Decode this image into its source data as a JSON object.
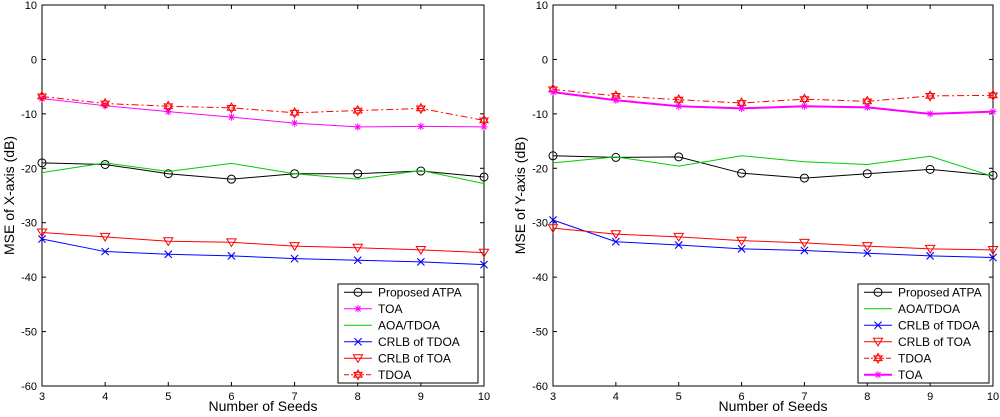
{
  "chart_data": [
    {
      "type": "line",
      "xlabel": "Number of Seeds",
      "ylabel": "MSE of X-axis (dB)",
      "x": [
        3,
        4,
        5,
        6,
        7,
        8,
        9,
        10
      ],
      "xlim": [
        3,
        10
      ],
      "ylim": [
        -60,
        10
      ],
      "xticks": [
        "3",
        "4",
        "5",
        "6",
        "7",
        "8",
        "9",
        "10"
      ],
      "yticks": [
        "-60",
        "-50",
        "-40",
        "-30",
        "-20",
        "-10",
        "0",
        "10"
      ],
      "grid": false,
      "legend_position": "bottom-right",
      "series": [
        {
          "name": "Proposed ATPA",
          "color": "#000000",
          "marker": "circle",
          "dash": "solid",
          "values": [
            -19.0,
            -19.3,
            -21.0,
            -22.0,
            -21.0,
            -21.0,
            -20.5,
            -21.6
          ]
        },
        {
          "name": "TOA",
          "color": "#ff00ff",
          "marker": "star",
          "dash": "solid",
          "values": [
            -7.2,
            -8.5,
            -9.6,
            -10.6,
            -11.7,
            -12.4,
            -12.3,
            -12.4
          ]
        },
        {
          "name": "AOA/TDOA",
          "color": "#00cc00",
          "marker": "none",
          "dash": "solid",
          "values": [
            -20.8,
            -19.0,
            -20.6,
            -19.1,
            -21.0,
            -22.0,
            -20.4,
            -22.8
          ]
        },
        {
          "name": "CRLB of TDOA",
          "color": "#0000ff",
          "marker": "x",
          "dash": "solid",
          "values": [
            -33.0,
            -35.3,
            -35.8,
            -36.1,
            -36.6,
            -36.9,
            -37.2,
            -37.7
          ]
        },
        {
          "name": "CRLB of TOA",
          "color": "#ff0000",
          "marker": "triangle-down",
          "dash": "solid",
          "values": [
            -31.8,
            -32.6,
            -33.4,
            -33.6,
            -34.3,
            -34.6,
            -35.0,
            -35.5
          ]
        },
        {
          "name": "TDOA",
          "color": "#ff0000",
          "marker": "hexagram",
          "dash": "dashdot",
          "values": [
            -6.8,
            -8.1,
            -8.6,
            -8.9,
            -9.8,
            -9.4,
            -9.0,
            -11.2
          ]
        }
      ]
    },
    {
      "type": "line",
      "xlabel": "Number of Seeds",
      "ylabel": "MSE of Y-axis (dB)",
      "x": [
        3,
        4,
        5,
        6,
        7,
        8,
        9,
        10
      ],
      "xlim": [
        3,
        10
      ],
      "ylim": [
        -60,
        10
      ],
      "xticks": [
        "3",
        "4",
        "5",
        "6",
        "7",
        "8",
        "9",
        "10"
      ],
      "yticks": [
        "-60",
        "-50",
        "-40",
        "-30",
        "-20",
        "-10",
        "0",
        "10"
      ],
      "grid": false,
      "legend_position": "bottom-right",
      "series": [
        {
          "name": "Proposed ATPA",
          "color": "#000000",
          "marker": "circle",
          "dash": "solid",
          "values": [
            -17.7,
            -18.0,
            -17.9,
            -20.9,
            -21.8,
            -21.0,
            -20.2,
            -21.3
          ]
        },
        {
          "name": "AOA/TDOA",
          "color": "#00cc00",
          "marker": "none",
          "dash": "solid",
          "values": [
            -19.0,
            -17.9,
            -19.6,
            -17.7,
            -18.8,
            -19.3,
            -17.8,
            -21.5
          ]
        },
        {
          "name": "CRLB of TDOA",
          "color": "#0000ff",
          "marker": "x",
          "dash": "solid",
          "values": [
            -29.5,
            -33.5,
            -34.1,
            -34.8,
            -35.1,
            -35.6,
            -36.1,
            -36.4
          ]
        },
        {
          "name": "CRLB of TOA",
          "color": "#ff0000",
          "marker": "triangle-down",
          "dash": "solid",
          "values": [
            -31.0,
            -32.1,
            -32.6,
            -33.3,
            -33.7,
            -34.3,
            -34.8,
            -35.0
          ]
        },
        {
          "name": "TDOA",
          "color": "#ff0000",
          "marker": "hexagram",
          "dash": "dashdot",
          "values": [
            -5.5,
            -6.7,
            -7.4,
            -8.0,
            -7.3,
            -7.7,
            -6.7,
            -6.6
          ]
        },
        {
          "name": "TOA",
          "color": "#ff00ff",
          "marker": "star",
          "dash": "solid",
          "width": 2,
          "values": [
            -6.0,
            -7.5,
            -8.6,
            -9.0,
            -8.6,
            -8.8,
            -10.0,
            -9.6
          ]
        }
      ]
    }
  ]
}
